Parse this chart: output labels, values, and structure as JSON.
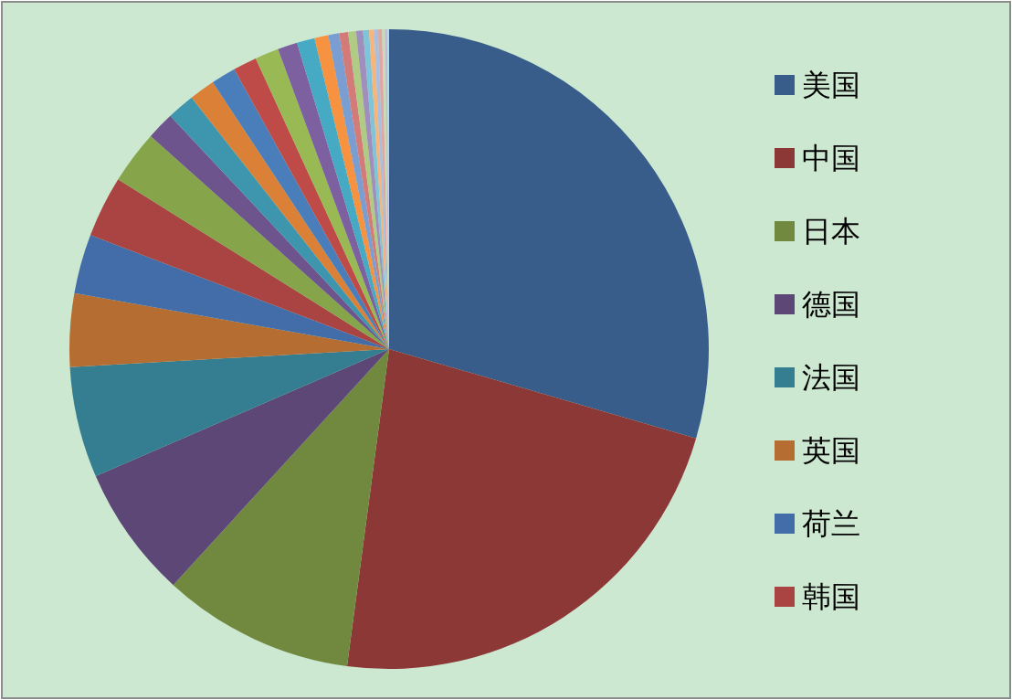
{
  "chart_data": {
    "type": "pie",
    "legend": "right",
    "categories": [
      "美国",
      "中国",
      "日本",
      "德国",
      "法国",
      "英国",
      "荷兰",
      "韩国",
      null,
      null,
      null,
      null,
      null,
      null,
      null,
      null,
      null,
      null,
      null,
      null,
      null,
      null,
      null,
      null,
      null,
      null,
      null,
      null,
      null
    ],
    "values": [
      29.5,
      22.6,
      9.7,
      6.7,
      5.6,
      3.7,
      3.0,
      3.1,
      2.7,
      1.4,
      1.4,
      1.3,
      1.25,
      1.2,
      1.2,
      1.0,
      0.9,
      0.7,
      0.55,
      0.45,
      0.4,
      0.35,
      0.3,
      0.25,
      0.2,
      0.2,
      0.15,
      0.1,
      0.1
    ],
    "colors": [
      "#385d8a",
      "#8c3836",
      "#71893f",
      "#5c4776",
      "#357d91",
      "#b66d31",
      "#426da9",
      "#a94442",
      "#86a44a",
      "#6e548d",
      "#3d96ae",
      "#da8137",
      "#4a7ebb",
      "#be4b48",
      "#98b954",
      "#7d60a0",
      "#46aac5",
      "#f69240",
      "#7b9ed2",
      "#d37b78",
      "#b0cb84",
      "#a08ebc",
      "#7fc4d8",
      "#f9b47b",
      "#a7bfe0",
      "#e0a6a5",
      "#c9dbb0",
      "#c2b7d6",
      "#b3dae5"
    ]
  }
}
